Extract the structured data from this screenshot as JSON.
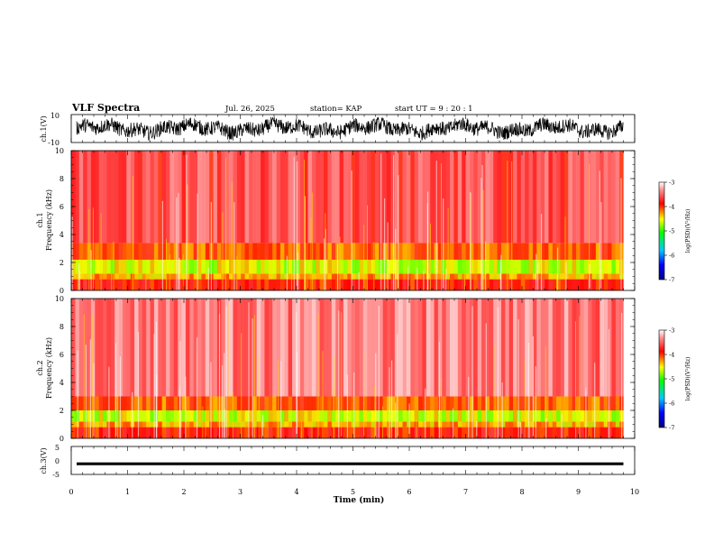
{
  "chart_data": {
    "type": "heatmap",
    "header": {
      "title": "VLF Spectra",
      "date": "Jul. 26, 2025",
      "station": "station= KAP",
      "start": "start UT =   9 : 20 : 1"
    },
    "x_axis": {
      "label": "Time (min)",
      "range": [
        0,
        10
      ],
      "ticks": [
        "0",
        "1",
        "2",
        "3",
        "4",
        "5",
        "6",
        "7",
        "8",
        "9",
        "10"
      ],
      "data_end_min": 9.8
    },
    "panels": [
      {
        "id": "ch1-waveform",
        "type": "line",
        "ylabel": "ch.1(V)",
        "ylim": [
          -10,
          10
        ],
        "yticks": [
          "10",
          "-10"
        ],
        "mean": 0,
        "amplitude": 7
      },
      {
        "id": "ch1-spectrogram",
        "type": "heatmap",
        "ylabel_lines": [
          "ch.1",
          "Frequency (kHz)"
        ],
        "ylim": [
          0,
          10
        ],
        "yticks": [
          "0",
          "2",
          "4",
          "6",
          "8",
          "10"
        ],
        "bands_khz": [
          {
            "from": 0,
            "to": 0.8,
            "level": -3.9
          },
          {
            "from": 0.8,
            "to": 1.2,
            "level": -4.3
          },
          {
            "from": 1.2,
            "to": 2.2,
            "level": -4.6
          },
          {
            "from": 2.2,
            "to": 3.4,
            "level": -4.1
          },
          {
            "from": 3.4,
            "to": 10,
            "level": -3.6
          }
        ],
        "colorbar": {
          "label": "log(PSD)(V²/Hz)",
          "range": [
            -7,
            -3
          ],
          "ticks": [
            "-3",
            "-4",
            "-5",
            "-6",
            "-7"
          ]
        }
      },
      {
        "id": "ch2-spectrogram",
        "type": "heatmap",
        "ylabel_lines": [
          "ch.2",
          "Frequency (kHz)"
        ],
        "ylim": [
          0,
          10
        ],
        "yticks": [
          "0",
          "2",
          "4",
          "6",
          "8",
          "10"
        ],
        "bands_khz": [
          {
            "from": 0,
            "to": 0.8,
            "level": -3.9
          },
          {
            "from": 0.8,
            "to": 1.2,
            "level": -4.3
          },
          {
            "from": 1.2,
            "to": 2.0,
            "level": -4.6
          },
          {
            "from": 2.0,
            "to": 3.0,
            "level": -4.1
          },
          {
            "from": 3.0,
            "to": 10,
            "level": -3.4
          }
        ],
        "colorbar": {
          "label": "log(PSD)(V²/Hz)",
          "range": [
            -7,
            -3
          ],
          "ticks": [
            "-3",
            "-4",
            "-5",
            "-6",
            "-7"
          ]
        }
      },
      {
        "id": "ch3-waveform",
        "type": "line",
        "ylabel": "ch.3(V)",
        "ylim": [
          -5,
          5
        ],
        "yticks": [
          "5",
          "0",
          "-5"
        ],
        "mean": -1.2,
        "amplitude": 0.5
      }
    ]
  }
}
